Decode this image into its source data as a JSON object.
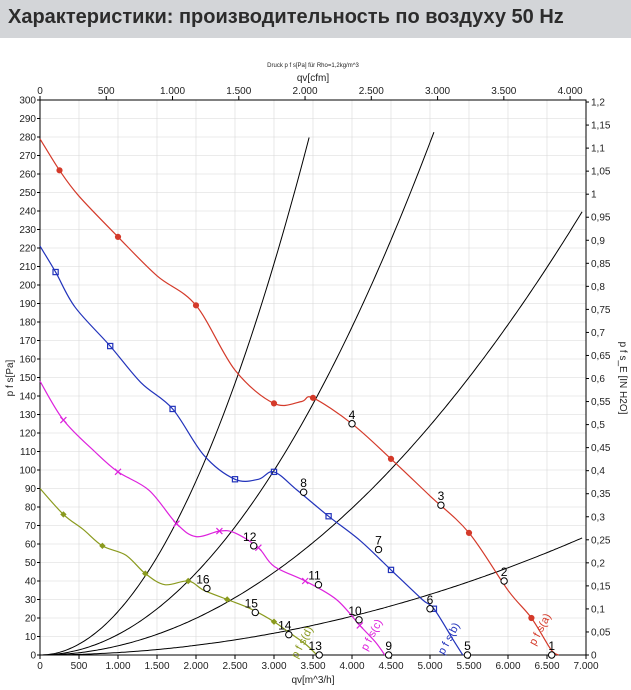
{
  "header": {
    "title": "Характеристики: производительность по воздуху 50 Hz"
  },
  "colors": {
    "header_bg": "#d3d5d8",
    "red": "#d43a2a",
    "blue": "#2233bb",
    "magenta": "#dd22dd",
    "olive": "#8a9a1e",
    "system": "#000000"
  },
  "chart_data": {
    "type": "line",
    "subtitle": "Druck p f s[Pa] für Rho=1,2kg/m^3",
    "xlabel": "qv[m^3/h]",
    "x2label": "qv[cfm]",
    "ylabel": "p f s[Pa]",
    "y2label": "p f s_E [IN H2O]",
    "xlim": [
      0,
      7000
    ],
    "ylim": [
      0,
      300
    ],
    "x_ticks": [
      "0",
      "500",
      "1.000",
      "1.500",
      "2.000",
      "2.500",
      "3.000",
      "3.500",
      "4.000",
      "4.500",
      "5.000",
      "5.500",
      "6.000",
      "6.500",
      "7.000"
    ],
    "x_tick_values": [
      0,
      500,
      1000,
      1500,
      2000,
      2500,
      3000,
      3500,
      4000,
      4500,
      5000,
      5500,
      6000,
      6500,
      7000
    ],
    "x2_ticks": [
      "0",
      "500",
      "1.000",
      "1.500",
      "2.000",
      "2.500",
      "3.000",
      "3.500",
      "4.000"
    ],
    "x2_tick_values": [
      0,
      500,
      1000,
      1500,
      2000,
      2500,
      3000,
      3500,
      4000
    ],
    "y_ticks": [
      "0",
      "10",
      "20",
      "30",
      "40",
      "50",
      "60",
      "70",
      "80",
      "90",
      "100",
      "110",
      "120",
      "130",
      "140",
      "150",
      "160",
      "170",
      "180",
      "190",
      "200",
      "210",
      "220",
      "230",
      "240",
      "250",
      "260",
      "270",
      "280",
      "290",
      "300"
    ],
    "y_tick_values": [
      0,
      10,
      20,
      30,
      40,
      50,
      60,
      70,
      80,
      90,
      100,
      110,
      120,
      130,
      140,
      150,
      160,
      170,
      180,
      190,
      200,
      210,
      220,
      230,
      240,
      250,
      260,
      270,
      280,
      290,
      300
    ],
    "y2_ticks": [
      "0",
      "0,05",
      "0,1",
      "0,15",
      "0,2",
      "0,25",
      "0,3",
      "0,35",
      "0,4",
      "0,45",
      "0,5",
      "0,55",
      "0,6",
      "0,65",
      "0,7",
      "0,75",
      "0,8",
      "0,85",
      "0,9",
      "0,95",
      "1",
      "1,05",
      "1,1",
      "1,15",
      "1,2"
    ],
    "y2_tick_values": [
      0,
      0.05,
      0.1,
      0.15,
      0.2,
      0.25,
      0.3,
      0.35,
      0.4,
      0.45,
      0.5,
      0.55,
      0.6,
      0.65,
      0.7,
      0.75,
      0.8,
      0.85,
      0.9,
      0.95,
      1,
      1.05,
      1.1,
      1.15,
      1.2
    ],
    "series": [
      {
        "name": "p f s(a)",
        "color": "#d43a2a",
        "marker": "circle",
        "x": [
          0,
          250,
          500,
          1000,
          1500,
          2000,
          2500,
          3000,
          3350,
          3500,
          4000,
          4500,
          5000,
          5500,
          6000,
          6300,
          6550,
          6650
        ],
        "y": [
          279,
          262,
          248,
          226,
          205,
          189,
          154,
          136,
          137,
          139,
          125,
          106,
          86,
          66,
          35,
          20,
          3,
          0
        ]
      },
      {
        "name": "p f s(b)",
        "color": "#2233bb",
        "marker": "square",
        "x": [
          0,
          200,
          450,
          900,
          1300,
          1700,
          2100,
          2500,
          2800,
          3000,
          3300,
          3700,
          4100,
          4500,
          4900,
          5050,
          5300,
          5420
        ],
        "y": [
          221,
          207,
          188,
          167,
          147,
          133,
          108,
          95,
          95,
          99,
          89,
          75,
          62,
          46,
          30,
          25,
          8,
          0
        ]
      },
      {
        "name": "p f s(c)",
        "color": "#dd22dd",
        "marker": "x",
        "x": [
          0,
          300,
          700,
          1000,
          1400,
          1750,
          2000,
          2300,
          2500,
          2800,
          3000,
          3400,
          3800,
          4100,
          4300,
          4420
        ],
        "y": [
          148,
          127,
          110,
          99,
          89,
          71,
          64,
          67,
          66,
          58,
          48,
          40,
          30,
          16,
          7,
          0
        ]
      },
      {
        "name": "p f s(d)",
        "color": "#8a9a1e",
        "marker": "diamond",
        "x": [
          0,
          300,
          550,
          800,
          1100,
          1350,
          1600,
          1900,
          2100,
          2400,
          2700,
          3000,
          3200,
          3400,
          3550
        ],
        "y": [
          90,
          76,
          68,
          59,
          54,
          44,
          38,
          40,
          35,
          30,
          25,
          18,
          12,
          6,
          0
        ]
      }
    ],
    "system_curves": [
      {
        "k": 2.35e-05,
        "x_max": 3600
      },
      {
        "k": 1.108e-05,
        "x_max": 5450
      },
      {
        "k": 4.96e-06,
        "x_max": 6950
      },
      {
        "k": 1.31e-06,
        "x_max": 6950
      }
    ],
    "operating_points": [
      {
        "label": "1",
        "x": 6560,
        "y": 0
      },
      {
        "label": "2",
        "x": 5950,
        "y": 40
      },
      {
        "label": "3",
        "x": 5140,
        "y": 81
      },
      {
        "label": "4",
        "x": 4000,
        "y": 125
      },
      {
        "label": "5",
        "x": 5480,
        "y": 0
      },
      {
        "label": "6",
        "x": 5000,
        "y": 25
      },
      {
        "label": "7",
        "x": 4340,
        "y": 57
      },
      {
        "label": "8",
        "x": 3380,
        "y": 88
      },
      {
        "label": "9",
        "x": 4470,
        "y": 0
      },
      {
        "label": "10",
        "x": 4090,
        "y": 19
      },
      {
        "label": "11",
        "x": 3570,
        "y": 38
      },
      {
        "label": "12",
        "x": 2740,
        "y": 59
      },
      {
        "label": "13",
        "x": 3580,
        "y": 0
      },
      {
        "label": "14",
        "x": 3190,
        "y": 11
      },
      {
        "label": "15",
        "x": 2760,
        "y": 23
      },
      {
        "label": "16",
        "x": 2140,
        "y": 36
      }
    ],
    "curve_labels": [
      {
        "text": "p f s(a)",
        "x": 6450,
        "y": 13,
        "color": "#d43a2a"
      },
      {
        "text": "p f s(b)",
        "x": 5280,
        "y": 8,
        "color": "#2233bb"
      },
      {
        "text": "p f s(c)",
        "x": 4290,
        "y": 10,
        "color": "#dd22dd"
      },
      {
        "text": "p f s(d)",
        "x": 3400,
        "y": 6,
        "color": "#8a9a1e"
      }
    ],
    "grid": true
  }
}
